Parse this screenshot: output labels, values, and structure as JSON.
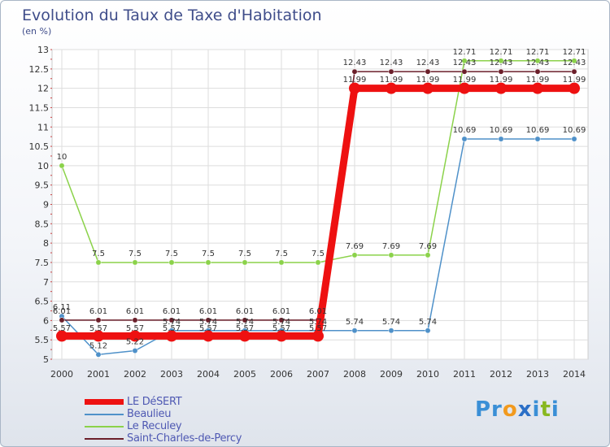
{
  "title": "Evolution du Taux de Taxe d'Habitation",
  "unit": "(en %)",
  "logo": {
    "parts": [
      "Pr",
      "o",
      "x",
      "i",
      "t",
      "i"
    ],
    "colors": [
      "#3a8fd6",
      "#f29a1e",
      "#2b6fc7",
      "#3a8fd6",
      "#88b820",
      "#3a8fd6"
    ]
  },
  "chart_data": {
    "type": "line",
    "title": "Evolution du Taux de Taxe d'Habitation",
    "ylabel": "(en %)",
    "xlabel": "",
    "ylim": [
      5,
      13
    ],
    "yticks": [
      "5",
      "5.5",
      "6",
      "6.5",
      "7",
      "7.5",
      "8",
      "8.5",
      "9",
      "9.5",
      "10",
      "10.5",
      "11",
      "11.5",
      "12",
      "12.5",
      "13"
    ],
    "categories": [
      "2000",
      "2001",
      "2002",
      "2003",
      "2004",
      "2005",
      "2006",
      "2007",
      "2008",
      "2009",
      "2010",
      "2011",
      "2012",
      "2013",
      "2014"
    ],
    "series": [
      {
        "name": "LE DéSERT",
        "color": "#ee1111",
        "values": [
          5.6,
          5.6,
          5.6,
          5.6,
          5.6,
          5.6,
          5.6,
          5.6,
          12,
          12,
          12,
          12,
          12,
          12,
          12
        ],
        "labels": [
          "",
          "",
          "",
          "",
          "",
          "",
          "",
          "",
          "",
          "",
          "",
          "",
          "",
          "",
          ""
        ]
      },
      {
        "name": "Beaulieu",
        "color": "#4f91c9",
        "values": [
          6.11,
          5.12,
          5.22,
          5.74,
          5.74,
          5.74,
          5.74,
          5.74,
          5.74,
          5.74,
          5.74,
          10.69,
          10.69,
          10.69,
          10.69
        ],
        "labels": [
          "6.11",
          "5.12",
          "5.22",
          "5.74",
          "5.74",
          "5.74",
          "5.74",
          "5.74",
          "5.74",
          "5.74",
          "5.74",
          "10.69",
          "10.69",
          "10.69",
          "10.69"
        ]
      },
      {
        "name": "Le Reculey",
        "color": "#8bd24a",
        "values": [
          10,
          7.5,
          7.5,
          7.5,
          7.5,
          7.5,
          7.5,
          7.5,
          7.69,
          7.69,
          7.69,
          12.71,
          12.71,
          12.71,
          12.71
        ],
        "labels": [
          "10",
          "7.5",
          "7.5",
          "7.5",
          "7.5",
          "7.5",
          "7.5",
          "7.5",
          "7.69",
          "7.69",
          "7.69",
          "12.71",
          "12.71",
          "12.71",
          "12.71"
        ]
      },
      {
        "name": "Saint-Charles-de-Percy",
        "color": "#6b1f2a",
        "values": [
          6.01,
          6.01,
          6.01,
          6.01,
          6.01,
          6.01,
          6.01,
          6.01,
          12.43,
          12.43,
          12.43,
          12.43,
          12.43,
          12.43,
          12.43
        ],
        "labels": [
          "6.01",
          "6.01",
          "6.01",
          "6.01",
          "6.01",
          "6.01",
          "6.01",
          "6.01",
          "12.43",
          "12.43",
          "12.43",
          "12.43",
          "12.43",
          "12.43",
          "12.43"
        ]
      },
      {
        "name": "",
        "color": "#333333",
        "values": [
          5.57,
          5.57,
          5.57,
          5.57,
          5.57,
          5.57,
          5.57,
          5.57,
          11.99,
          11.99,
          11.99,
          11.99,
          11.99,
          11.99,
          11.99
        ],
        "labels": [
          "5.57",
          "5.57",
          "5.57",
          "5.57",
          "5.57",
          "5.57",
          "5.57",
          "5.57",
          "11.99",
          "11.99",
          "11.99",
          "11.99",
          "11.99",
          "11.99",
          "11.99"
        ],
        "labelOnly": true
      }
    ],
    "legend": [
      "LE DéSERT",
      "Beaulieu",
      "Le Reculey",
      "Saint-Charles-de-Percy"
    ]
  }
}
